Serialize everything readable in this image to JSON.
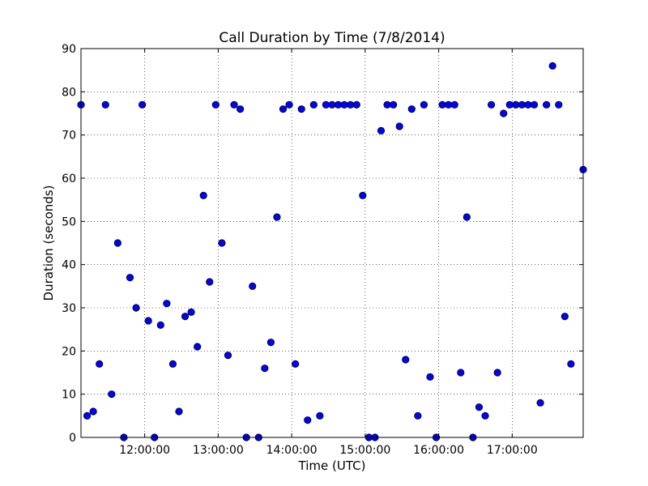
{
  "chart_data": {
    "type": "scatter",
    "title": "Call Duration by Time (7/8/2014)",
    "xlabel": "Time (UTC)",
    "ylabel": "Duration (seconds)",
    "xlim": [
      "11:08:00",
      "17:58:00"
    ],
    "ylim": [
      0,
      90
    ],
    "xticks": [
      "12:00:00",
      "13:00:00",
      "14:00:00",
      "15:00:00",
      "16:00:00",
      "17:00:00"
    ],
    "yticks": [
      0,
      10,
      20,
      30,
      40,
      50,
      60,
      70,
      80,
      90
    ],
    "grid": true,
    "marker_color": "#0000ff",
    "series": [
      {
        "points": [
          {
            "x": "11:08:00",
            "y": 77
          },
          {
            "x": "11:13:00",
            "y": 5
          },
          {
            "x": "11:18:00",
            "y": 6
          },
          {
            "x": "11:23:00",
            "y": 17
          },
          {
            "x": "11:28:00",
            "y": 77
          },
          {
            "x": "11:33:00",
            "y": 10
          },
          {
            "x": "11:38:00",
            "y": 45
          },
          {
            "x": "11:43:00",
            "y": 0
          },
          {
            "x": "11:48:00",
            "y": 37
          },
          {
            "x": "11:53:00",
            "y": 30
          },
          {
            "x": "11:58:00",
            "y": 77
          },
          {
            "x": "12:03:00",
            "y": 27
          },
          {
            "x": "12:08:00",
            "y": 0
          },
          {
            "x": "12:13:00",
            "y": 26
          },
          {
            "x": "12:18:00",
            "y": 31
          },
          {
            "x": "12:23:00",
            "y": 17
          },
          {
            "x": "12:28:00",
            "y": 6
          },
          {
            "x": "12:33:00",
            "y": 28
          },
          {
            "x": "12:38:00",
            "y": 29
          },
          {
            "x": "12:43:00",
            "y": 21
          },
          {
            "x": "12:48:00",
            "y": 56
          },
          {
            "x": "12:53:00",
            "y": 36
          },
          {
            "x": "12:58:00",
            "y": 77
          },
          {
            "x": "13:03:00",
            "y": 45
          },
          {
            "x": "13:08:00",
            "y": 19
          },
          {
            "x": "13:13:00",
            "y": 77
          },
          {
            "x": "13:18:00",
            "y": 76
          },
          {
            "x": "13:23:00",
            "y": 0
          },
          {
            "x": "13:28:00",
            "y": 35
          },
          {
            "x": "13:33:00",
            "y": 0
          },
          {
            "x": "13:38:00",
            "y": 16
          },
          {
            "x": "13:43:00",
            "y": 22
          },
          {
            "x": "13:48:00",
            "y": 51
          },
          {
            "x": "13:53:00",
            "y": 76
          },
          {
            "x": "13:58:00",
            "y": 77
          },
          {
            "x": "14:03:00",
            "y": 17
          },
          {
            "x": "14:08:00",
            "y": 76
          },
          {
            "x": "14:13:00",
            "y": 4
          },
          {
            "x": "14:18:00",
            "y": 77
          },
          {
            "x": "14:23:00",
            "y": 5
          },
          {
            "x": "14:28:00",
            "y": 77
          },
          {
            "x": "14:33:00",
            "y": 77
          },
          {
            "x": "14:38:00",
            "y": 77
          },
          {
            "x": "14:43:00",
            "y": 77
          },
          {
            "x": "14:48:00",
            "y": 77
          },
          {
            "x": "14:53:00",
            "y": 77
          },
          {
            "x": "14:58:00",
            "y": 56
          },
          {
            "x": "15:03:00",
            "y": 0
          },
          {
            "x": "15:08:00",
            "y": 0
          },
          {
            "x": "15:13:00",
            "y": 71
          },
          {
            "x": "15:18:00",
            "y": 77
          },
          {
            "x": "15:23:00",
            "y": 77
          },
          {
            "x": "15:28:00",
            "y": 72
          },
          {
            "x": "15:33:00",
            "y": 18
          },
          {
            "x": "15:38:00",
            "y": 76
          },
          {
            "x": "15:43:00",
            "y": 5
          },
          {
            "x": "15:48:00",
            "y": 77
          },
          {
            "x": "15:53:00",
            "y": 14
          },
          {
            "x": "15:58:00",
            "y": 0
          },
          {
            "x": "16:03:00",
            "y": 77
          },
          {
            "x": "16:08:00",
            "y": 77
          },
          {
            "x": "16:13:00",
            "y": 77
          },
          {
            "x": "16:18:00",
            "y": 15
          },
          {
            "x": "16:23:00",
            "y": 51
          },
          {
            "x": "16:28:00",
            "y": 0
          },
          {
            "x": "16:33:00",
            "y": 7
          },
          {
            "x": "16:38:00",
            "y": 5
          },
          {
            "x": "16:43:00",
            "y": 77
          },
          {
            "x": "16:48:00",
            "y": 15
          },
          {
            "x": "16:53:00",
            "y": 75
          },
          {
            "x": "16:58:00",
            "y": 77
          },
          {
            "x": "17:03:00",
            "y": 77
          },
          {
            "x": "17:08:00",
            "y": 77
          },
          {
            "x": "17:13:00",
            "y": 77
          },
          {
            "x": "17:18:00",
            "y": 77
          },
          {
            "x": "17:23:00",
            "y": 8
          },
          {
            "x": "17:28:00",
            "y": 77
          },
          {
            "x": "17:33:00",
            "y": 86
          },
          {
            "x": "17:38:00",
            "y": 77
          },
          {
            "x": "17:43:00",
            "y": 28
          },
          {
            "x": "17:48:00",
            "y": 17
          },
          {
            "x": "17:58:00",
            "y": 62
          }
        ]
      }
    ]
  }
}
